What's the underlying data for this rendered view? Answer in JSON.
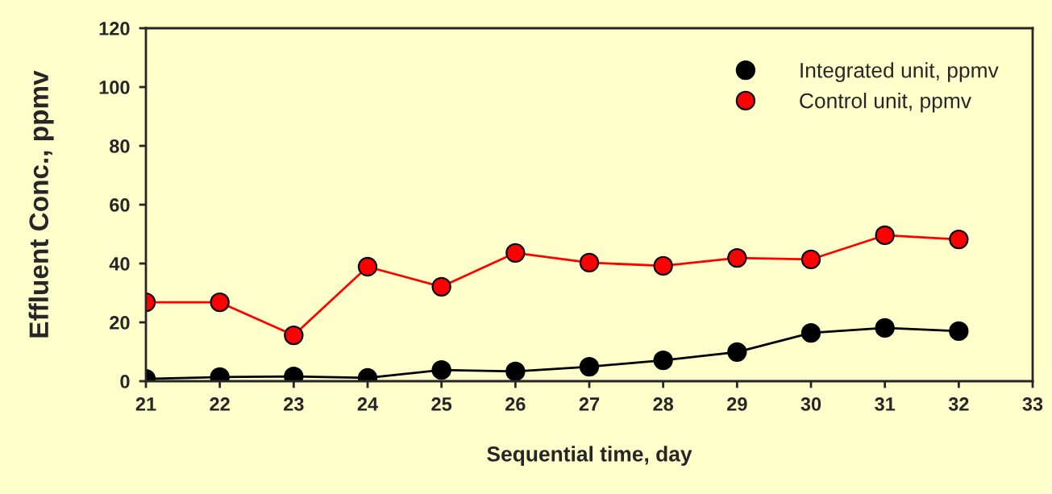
{
  "chart_data": {
    "type": "line",
    "xlabel": "Sequential time, day",
    "ylabel": "Effluent Conc., ppmv",
    "x": [
      21,
      22,
      23,
      24,
      25,
      26,
      27,
      28,
      29,
      30,
      31,
      32
    ],
    "series": [
      {
        "name": "Integrated unit, ppmv",
        "color": "#000000",
        "values": [
          0.8,
          1.4,
          1.6,
          1.1,
          3.8,
          3.3,
          4.9,
          7.1,
          9.9,
          16.4,
          18.1,
          17.0
        ]
      },
      {
        "name": "Control unit, ppmv",
        "color": "#ff0000",
        "values": [
          26.8,
          26.8,
          15.6,
          38.9,
          32.1,
          43.6,
          40.3,
          39.2,
          41.9,
          41.4,
          49.6,
          48.2
        ]
      }
    ],
    "xlim": [
      21,
      33
    ],
    "xticks": [
      21,
      22,
      23,
      24,
      25,
      26,
      27,
      28,
      29,
      30,
      31,
      32,
      33
    ],
    "ylim": [
      0,
      120
    ],
    "yticks": [
      0,
      20,
      40,
      60,
      80,
      100,
      120
    ],
    "grid": false,
    "legend": "top right",
    "marker": "circle",
    "line_style": "solid"
  }
}
